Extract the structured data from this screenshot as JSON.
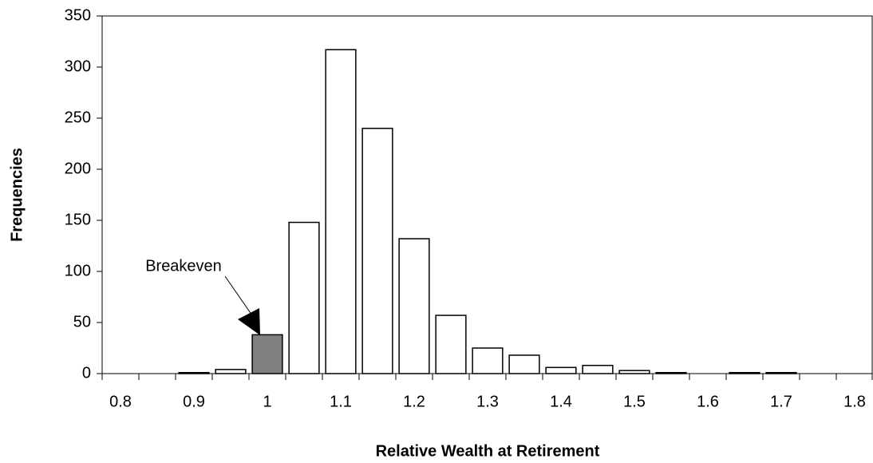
{
  "chart_data": {
    "type": "bar",
    "x_label": "Relative Wealth at Retirement",
    "y_label": "Frequencies",
    "categories": [
      "0.8",
      null,
      "0.9",
      null,
      "1",
      null,
      "1.1",
      null,
      "1.2",
      null,
      "1.3",
      null,
      "1.4",
      null,
      "1.5",
      null,
      "1.6",
      null,
      "1.7",
      null,
      "1.8"
    ],
    "values": [
      0,
      0,
      1,
      4,
      38,
      148,
      317,
      240,
      132,
      57,
      25,
      18,
      6,
      8,
      3,
      1,
      0,
      1,
      1,
      0,
      0
    ],
    "colors": [
      "#ffffff",
      "#ffffff",
      "#ffffff",
      "#ffffff",
      "#808080",
      "#ffffff",
      "#ffffff",
      "#ffffff",
      "#ffffff",
      "#ffffff",
      "#ffffff",
      "#ffffff",
      "#ffffff",
      "#ffffff",
      "#ffffff",
      "#ffffff",
      "#ffffff",
      "#ffffff",
      "#ffffff",
      "#ffffff",
      "#ffffff"
    ],
    "annotation": "Breakeven",
    "ylim": [
      0,
      350
    ],
    "yticks": [
      0,
      50,
      100,
      150,
      200,
      250,
      300,
      350
    ],
    "grid": false
  }
}
